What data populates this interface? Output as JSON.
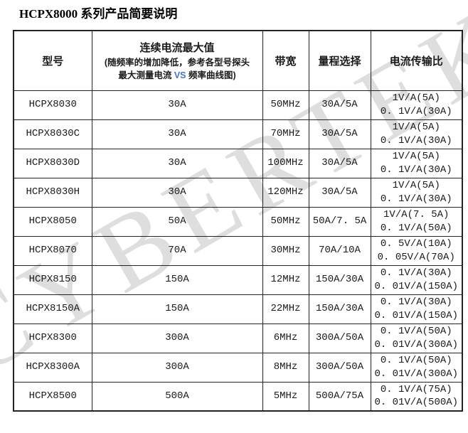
{
  "title": "HCPX8000 系列产品简要说明",
  "watermark_text": "CYBERTEK",
  "colors": {
    "vs_blue": "#4472C4",
    "watermark_gray": "#dedede",
    "border": "#222222"
  },
  "table": {
    "headers": {
      "model": "型号",
      "max_current_title": "连续电流最大值",
      "max_current_note1": "(随频率的增加降低，参考各型号探头",
      "max_current_note2_pre": "最大测量电流 ",
      "max_current_note2_vs": "VS",
      "max_current_note2_post": " 频率曲线图)",
      "bandwidth": "带宽",
      "range": "量程选择",
      "ratio": "电流传输比"
    },
    "rows": [
      {
        "model": "HCPX8030",
        "max_current": "30A",
        "bandwidth": "50MHz",
        "range": "30A/5A",
        "ratio_line1": "1V/A(5A)",
        "ratio_line2": "0. 1V/A(30A)"
      },
      {
        "model": "HCPX8030C",
        "max_current": "30A",
        "bandwidth": "70MHz",
        "range": "30A/5A",
        "ratio_line1": "1V/A(5A)",
        "ratio_line2": "0. 1V/A(30A)"
      },
      {
        "model": "HCPX8030D",
        "max_current": "30A",
        "bandwidth": "100MHz",
        "range": "30A/5A",
        "ratio_line1": "1V/A(5A)",
        "ratio_line2": "0. 1V/A(30A)"
      },
      {
        "model": "HCPX8030H",
        "max_current": "30A",
        "bandwidth": "120MHz",
        "range": "30A/5A",
        "ratio_line1": "1V/A(5A)",
        "ratio_line2": "0. 1V/A(30A)"
      },
      {
        "model": "HCPX8050",
        "max_current": "50A",
        "bandwidth": "50MHz",
        "range": "50A/7. 5A",
        "ratio_line1": "1V/A(7. 5A)",
        "ratio_line2": "0. 1V/A(50A)"
      },
      {
        "model": "HCPX8070",
        "max_current": "70A",
        "bandwidth": "30MHz",
        "range": "70A/10A",
        "ratio_line1": "0. 5V/A(10A)",
        "ratio_line2": "0. 05V/A(70A)"
      },
      {
        "model": "HCPX8150",
        "max_current": "150A",
        "bandwidth": "12MHz",
        "range": "150A/30A",
        "ratio_line1": "0. 1V/A(30A)",
        "ratio_line2": "0. 01V/A(150A)"
      },
      {
        "model": "HCPX8150A",
        "max_current": "150A",
        "bandwidth": "22MHz",
        "range": "150A/30A",
        "ratio_line1": "0. 1V/A(30A)",
        "ratio_line2": "0. 01V/A(150A)"
      },
      {
        "model": "HCPX8300",
        "max_current": "300A",
        "bandwidth": "6MHz",
        "range": "300A/50A",
        "ratio_line1": "0. 1V/A(50A)",
        "ratio_line2": "0. 01V/A(300A)"
      },
      {
        "model": "HCPX8300A",
        "max_current": "300A",
        "bandwidth": "8MHz",
        "range": "300A/50A",
        "ratio_line1": "0. 1V/A(50A)",
        "ratio_line2": "0. 01V/A(300A)"
      },
      {
        "model": "HCPX8500",
        "max_current": "500A",
        "bandwidth": "5MHz",
        "range": "500A/75A",
        "ratio_line1": "0. 1V/A(75A)",
        "ratio_line2": "0. 01V/A(500A)"
      }
    ]
  }
}
